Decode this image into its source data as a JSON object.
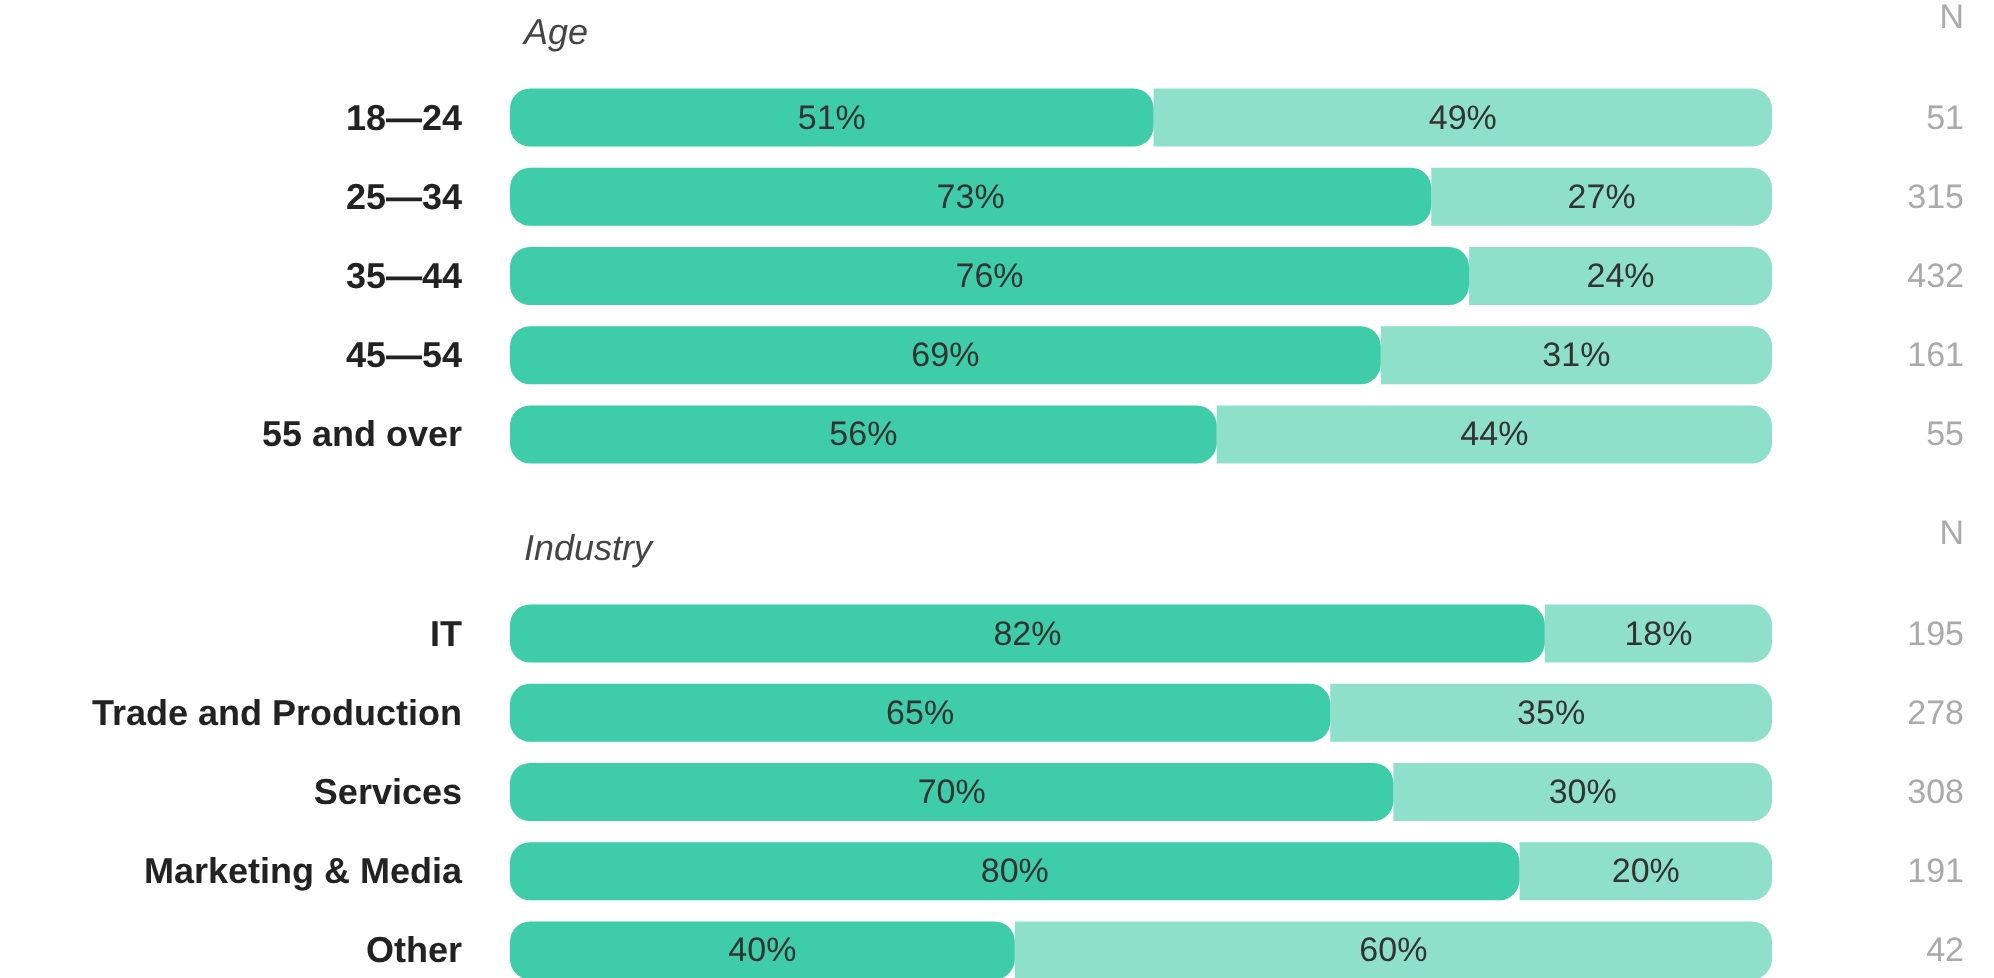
{
  "chart_data": [
    {
      "type": "bar",
      "orientation": "horizontal",
      "stacked": true,
      "title": "Age",
      "y2label": "N",
      "categories": [
        "18—24",
        "25—34",
        "35—44",
        "45—54",
        "55 and over"
      ],
      "y2_categories": [
        "51",
        "315",
        "432",
        "161",
        "55"
      ],
      "xlim": [
        0,
        100
      ],
      "tick_labels": "y",
      "series": [
        {
          "color": "#3ecda8",
          "values": [
            51,
            73,
            76,
            69,
            56
          ],
          "value_labels": [
            "51%",
            "73%",
            "76%",
            "69%",
            "56%"
          ]
        },
        {
          "color": "#8ee0cb",
          "values": [
            49,
            27,
            24,
            31,
            44
          ],
          "value_labels": [
            "49%",
            "27%",
            "24%",
            "31%",
            "44%"
          ]
        }
      ]
    },
    {
      "type": "bar",
      "orientation": "horizontal",
      "stacked": true,
      "title": "Industry",
      "y2label": "N",
      "categories": [
        "IT",
        "Trade and Production",
        "Services",
        "Marketing & Media",
        "Other"
      ],
      "y2_categories": [
        "195",
        "278",
        "308",
        "191",
        "42"
      ],
      "xlim": [
        0,
        100
      ],
      "tick_labels": "y",
      "series": [
        {
          "color": "#3ecda8",
          "values": [
            82,
            65,
            70,
            80,
            40
          ],
          "value_labels": [
            "82%",
            "65%",
            "70%",
            "80%",
            "40%"
          ]
        },
        {
          "color": "#8ee0cb",
          "values": [
            18,
            35,
            30,
            20,
            60
          ],
          "value_labels": [
            "18%",
            "35%",
            "30%",
            "20%",
            "60%"
          ]
        }
      ]
    }
  ]
}
